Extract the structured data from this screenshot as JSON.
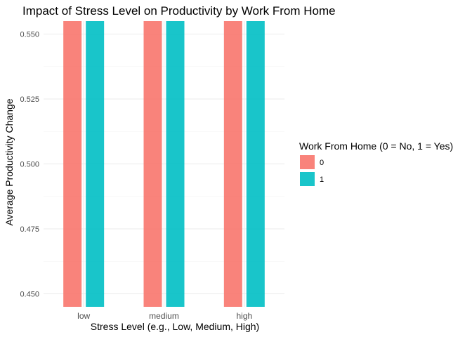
{
  "chart_data": {
    "type": "bar",
    "title": "Impact of Stress Level on Productivity by Work From Home",
    "xlabel": "Stress Level (e.g., Low, Medium, High)",
    "ylabel": "Average Productivity Change",
    "categories": [
      "low",
      "medium",
      "high"
    ],
    "legend": {
      "title": "Work From Home (0 = No, 1 = Yes)",
      "placement": "right"
    },
    "series": [
      {
        "name": "0",
        "color": "#F8766D",
        "values": [
          0.555,
          0.555,
          0.555
        ]
      },
      {
        "name": "1",
        "color": "#00BFC4",
        "values": [
          0.555,
          0.555,
          0.555
        ]
      }
    ],
    "ylim": [
      0.445,
      0.555
    ],
    "yticks": [
      0.45,
      0.475,
      0.5,
      0.525,
      0.55
    ],
    "ytick_labels": [
      "0.450",
      "0.475",
      "0.500",
      "0.525",
      "0.550"
    ],
    "grid": true
  }
}
